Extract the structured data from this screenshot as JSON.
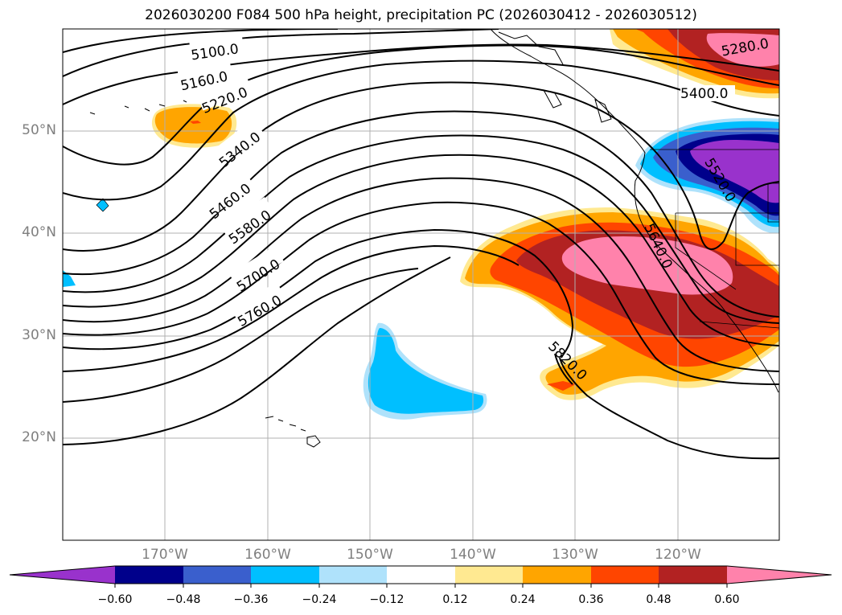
{
  "title": "2026030200 F084 500 hPa height, precipitation PC (2026030412 - 2026030512)",
  "lat_labels": [
    "50°N",
    "40°N",
    "30°N",
    "20°N"
  ],
  "lon_labels": [
    "170°W",
    "160°W",
    "150°W",
    "140°W",
    "130°W",
    "120°W"
  ],
  "contour_labels": [
    "5100.0",
    "5160.0",
    "5220.0",
    "5340.0",
    "5460.0",
    "5580.0",
    "5700.0",
    "5760.0",
    "5280.0",
    "5400.0",
    "5640.0",
    "5820.0",
    "5520.0"
  ],
  "colorbar": {
    "ticks": [
      "−0.60",
      "−0.48",
      "−0.36",
      "−0.24",
      "−0.12",
      "0.12",
      "0.24",
      "0.36",
      "0.48",
      "0.60"
    ],
    "colors": [
      "#9932cc",
      "#00008b",
      "#3a5fcd",
      "#00bfff",
      "#afe2fb",
      "#ffffff",
      "#ffe991",
      "#ffa500",
      "#ff4500",
      "#b22222",
      "#ff82ab"
    ]
  },
  "colors": {
    "grid": "#b0b0b0",
    "contour": "#000000",
    "coast": "#000000"
  }
}
